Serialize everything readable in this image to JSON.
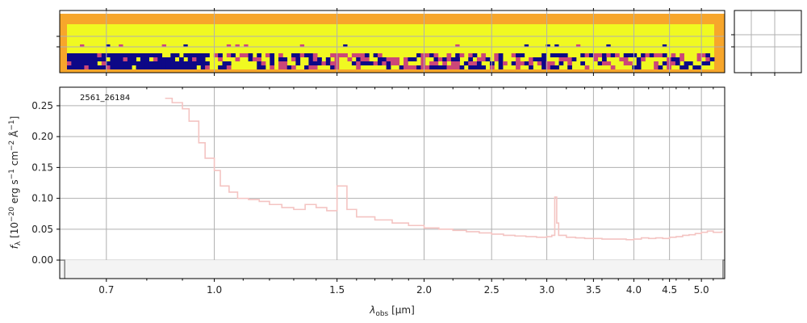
{
  "chart_data": [
    {
      "type": "heatmap",
      "panel": "2d-spectrum",
      "colormap": "plasma",
      "colors": {
        "high": "#f0f921",
        "high2": "#fdb42f",
        "mid": "#cc4778",
        "low": "#0d0887",
        "edge": "#f7a62b"
      },
      "rows": 8,
      "grid": true
    },
    {
      "type": "line",
      "panel": "1d-spectrum",
      "xlabel": "λ_obs [μm]",
      "ylabel": "f_λ [10^-20 erg s^-1 cm^-2 Å^-1]",
      "xscale": "log",
      "xlim": [
        0.6,
        5.4
      ],
      "ylim": [
        -0.03,
        0.28
      ],
      "x_ticks": [
        "0.7",
        "1.0",
        "1.5",
        "2.0",
        "2.5",
        "3.0",
        "3.5",
        "4.0",
        "4.5",
        "5.0"
      ],
      "y_ticks": [
        "0.00",
        "0.05",
        "0.10",
        "0.15",
        "0.20",
        "0.25"
      ],
      "annotation": "2561_26184",
      "grid": true,
      "line_color": "#f4c4c2",
      "series": [
        {
          "x": [
            0.85,
            0.87,
            0.9,
            0.92,
            0.95,
            0.97,
            1.0,
            1.02,
            1.05,
            1.08,
            1.12,
            1.16,
            1.2,
            1.25,
            1.3,
            1.35,
            1.4,
            1.45,
            1.5,
            1.55,
            1.6,
            1.7,
            1.8,
            1.9,
            2.0,
            2.1,
            2.2,
            2.3,
            2.4,
            2.5,
            2.6,
            2.7,
            2.8,
            2.9,
            3.0,
            3.05,
            3.08,
            3.1,
            3.12,
            3.2,
            3.3,
            3.4,
            3.5,
            3.6,
            3.7,
            3.8,
            3.9,
            4.0,
            4.1,
            4.2,
            4.3,
            4.4,
            4.5,
            4.6,
            4.7,
            4.8,
            4.9,
            5.0,
            5.1,
            5.2,
            5.3,
            5.35
          ],
          "y": [
            0.262,
            0.255,
            0.245,
            0.225,
            0.19,
            0.165,
            0.145,
            0.12,
            0.11,
            0.1,
            0.098,
            0.095,
            0.09,
            0.085,
            0.082,
            0.09,
            0.085,
            0.08,
            0.12,
            0.082,
            0.07,
            0.065,
            0.06,
            0.056,
            0.052,
            0.05,
            0.048,
            0.046,
            0.044,
            0.042,
            0.04,
            0.039,
            0.038,
            0.037,
            0.038,
            0.04,
            0.102,
            0.06,
            0.04,
            0.037,
            0.036,
            0.035,
            0.035,
            0.034,
            0.034,
            0.034,
            0.033,
            0.034,
            0.036,
            0.035,
            0.036,
            0.035,
            0.037,
            0.038,
            0.04,
            0.041,
            0.043,
            0.045,
            0.047,
            0.045,
            0.045,
            0.047
          ]
        }
      ]
    }
  ]
}
